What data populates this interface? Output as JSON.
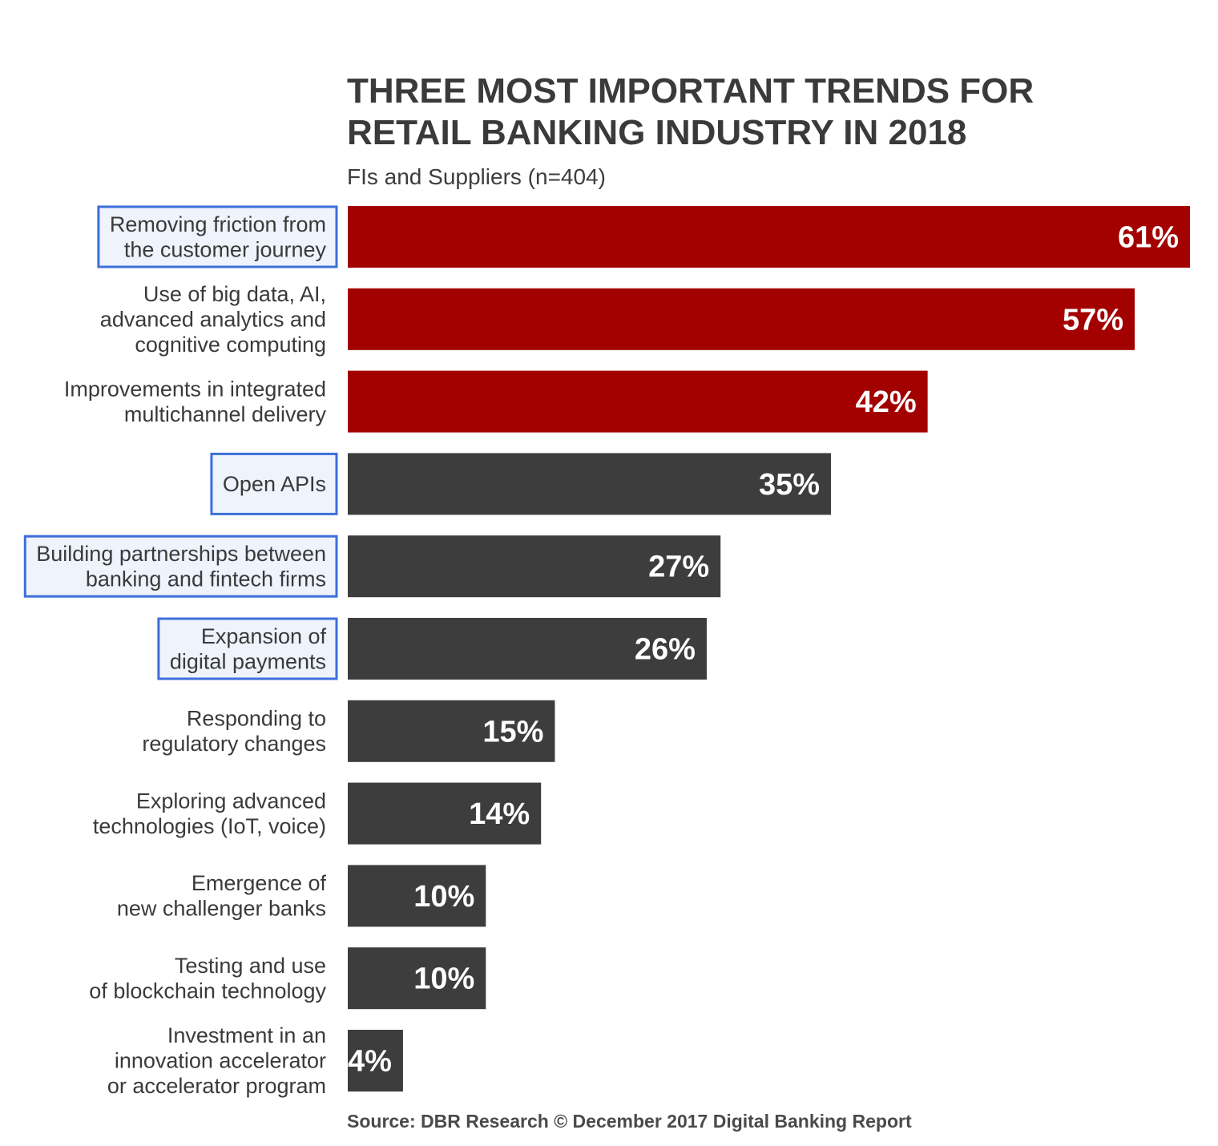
{
  "chart_data": {
    "type": "bar",
    "orientation": "horizontal",
    "title": [
      "THREE MOST IMPORTANT TRENDS FOR",
      "RETAIL BANKING INDUSTRY IN 2018"
    ],
    "subtitle": "FIs and Suppliers (n=404)",
    "source": "Source: DBR Research © December 2017 Digital Banking Report",
    "unit": "%",
    "xlim": [
      0,
      61
    ],
    "colors": {
      "top3": "#a30000",
      "other": "#3d3d3d",
      "highlight_border": "#3d6fd9",
      "highlight_fill": "#eef3fc"
    },
    "categories": [
      [
        "Removing friction from",
        "the customer journey"
      ],
      [
        "Use of big data, AI,",
        "advanced analytics and",
        "cognitive computing"
      ],
      [
        "Improvements in integrated",
        "multichannel delivery"
      ],
      [
        "Open APIs"
      ],
      [
        "Building partnerships between",
        "banking and fintech firms"
      ],
      [
        "Expansion of",
        "digital payments"
      ],
      [
        "Responding to",
        "regulatory changes"
      ],
      [
        "Exploring advanced",
        "technologies (IoT, voice)"
      ],
      [
        "Emergence of",
        "new challenger banks"
      ],
      [
        "Testing and use",
        "of blockchain technology"
      ],
      [
        "Investment in an",
        "innovation accelerator",
        "or accelerator program"
      ]
    ],
    "values": [
      61,
      57,
      42,
      35,
      27,
      26,
      15,
      14,
      10,
      10,
      4
    ],
    "value_labels": [
      "61%",
      "57%",
      "42%",
      "35%",
      "27%",
      "26%",
      "15%",
      "14%",
      "10%",
      "10%",
      "4%"
    ],
    "top_group_count": 3,
    "highlighted_categories": [
      0,
      3,
      4,
      5
    ]
  }
}
